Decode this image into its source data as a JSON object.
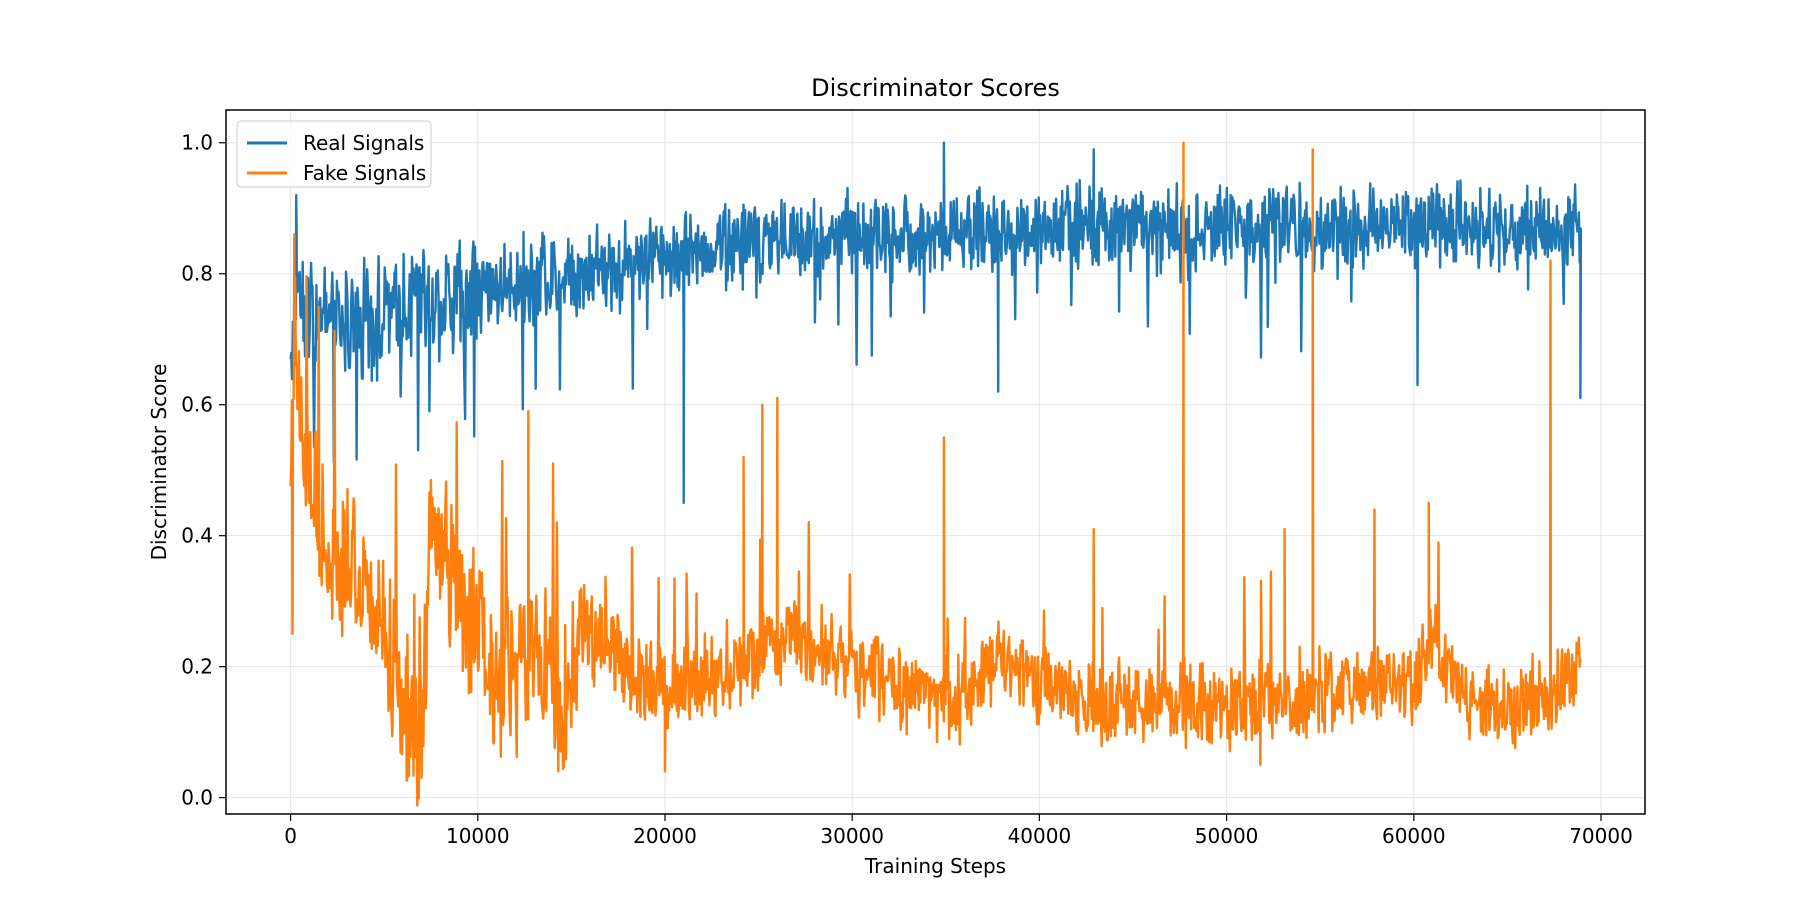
{
  "chart_data": {
    "type": "line",
    "title": "Discriminator Scores",
    "xlabel": "Training Steps",
    "ylabel": "Discriminator Score",
    "xlim": [
      -3450,
      72350
    ],
    "ylim": [
      -0.025,
      1.05
    ],
    "xticks": [
      0,
      10000,
      20000,
      30000,
      40000,
      50000,
      60000,
      70000
    ],
    "xtick_labels": [
      "0",
      "10000",
      "20000",
      "30000",
      "40000",
      "50000",
      "60000",
      "70000"
    ],
    "yticks": [
      0.0,
      0.2,
      0.4,
      0.6,
      0.8,
      1.0
    ],
    "ytick_labels": [
      "0.0",
      "0.2",
      "0.4",
      "0.6",
      "0.8",
      "1.0"
    ],
    "grid": true,
    "legend_position": "top-left",
    "series": [
      {
        "name": "Real Signals",
        "color": "#1f77b4",
        "trend_x": [
          0,
          300,
          1000,
          2000,
          4000,
          6000,
          8000,
          10000,
          12000,
          15000,
          18000,
          20000,
          25000,
          30000,
          35000,
          40000,
          45000,
          50000,
          55000,
          60000,
          65000,
          68900
        ],
        "trend_y": [
          0.66,
          0.8,
          0.74,
          0.72,
          0.73,
          0.75,
          0.76,
          0.77,
          0.79,
          0.8,
          0.82,
          0.83,
          0.85,
          0.86,
          0.86,
          0.87,
          0.87,
          0.87,
          0.87,
          0.87,
          0.87,
          0.87
        ],
        "noise_amplitude": 0.05,
        "spikes": [
          {
            "x": 300,
            "y": 0.92
          },
          {
            "x": 21000,
            "y": 0.45
          },
          {
            "x": 37800,
            "y": 0.62
          },
          {
            "x": 60200,
            "y": 0.63
          },
          {
            "x": 68900,
            "y": 0.61
          },
          {
            "x": 34900,
            "y": 1.0
          },
          {
            "x": 42900,
            "y": 0.99
          }
        ]
      },
      {
        "name": "Fake Signals",
        "color": "#ff7f0e",
        "trend_x": [
          0,
          300,
          800,
          1500,
          2500,
          3500,
          4500,
          5500,
          6500,
          7000,
          7500,
          8500,
          10000,
          11000,
          12000,
          13000,
          14000,
          14500,
          15500,
          17000,
          18500,
          20000,
          22000,
          24000,
          26000,
          28000,
          30000,
          33000,
          36000,
          38000,
          40000,
          43000,
          46000,
          48000,
          50000,
          53000,
          56000,
          58000,
          60000,
          61000,
          63000,
          66000,
          68900
        ],
        "trend_y": [
          0.55,
          0.72,
          0.5,
          0.42,
          0.38,
          0.36,
          0.3,
          0.2,
          0.12,
          0.08,
          0.42,
          0.33,
          0.25,
          0.18,
          0.2,
          0.22,
          0.18,
          0.12,
          0.24,
          0.25,
          0.18,
          0.17,
          0.18,
          0.2,
          0.24,
          0.24,
          0.2,
          0.16,
          0.15,
          0.22,
          0.18,
          0.14,
          0.15,
          0.14,
          0.14,
          0.15,
          0.16,
          0.18,
          0.16,
          0.24,
          0.14,
          0.14,
          0.2
        ],
        "noise_amplitude": 0.05,
        "spikes": [
          {
            "x": 200,
            "y": 0.86
          },
          {
            "x": 100,
            "y": 0.25
          },
          {
            "x": 7000,
            "y": 0.03
          },
          {
            "x": 14300,
            "y": 0.04
          },
          {
            "x": 20000,
            "y": 0.04
          },
          {
            "x": 24200,
            "y": 0.52
          },
          {
            "x": 25200,
            "y": 0.6
          },
          {
            "x": 26000,
            "y": 0.61
          },
          {
            "x": 12700,
            "y": 0.59
          },
          {
            "x": 34900,
            "y": 0.55
          },
          {
            "x": 42900,
            "y": 0.41
          },
          {
            "x": 47700,
            "y": 1.0
          },
          {
            "x": 54600,
            "y": 0.99
          },
          {
            "x": 53100,
            "y": 0.41
          },
          {
            "x": 51800,
            "y": 0.05
          },
          {
            "x": 57900,
            "y": 0.44
          },
          {
            "x": 60800,
            "y": 0.45
          },
          {
            "x": 67300,
            "y": 0.82
          }
        ]
      }
    ]
  }
}
